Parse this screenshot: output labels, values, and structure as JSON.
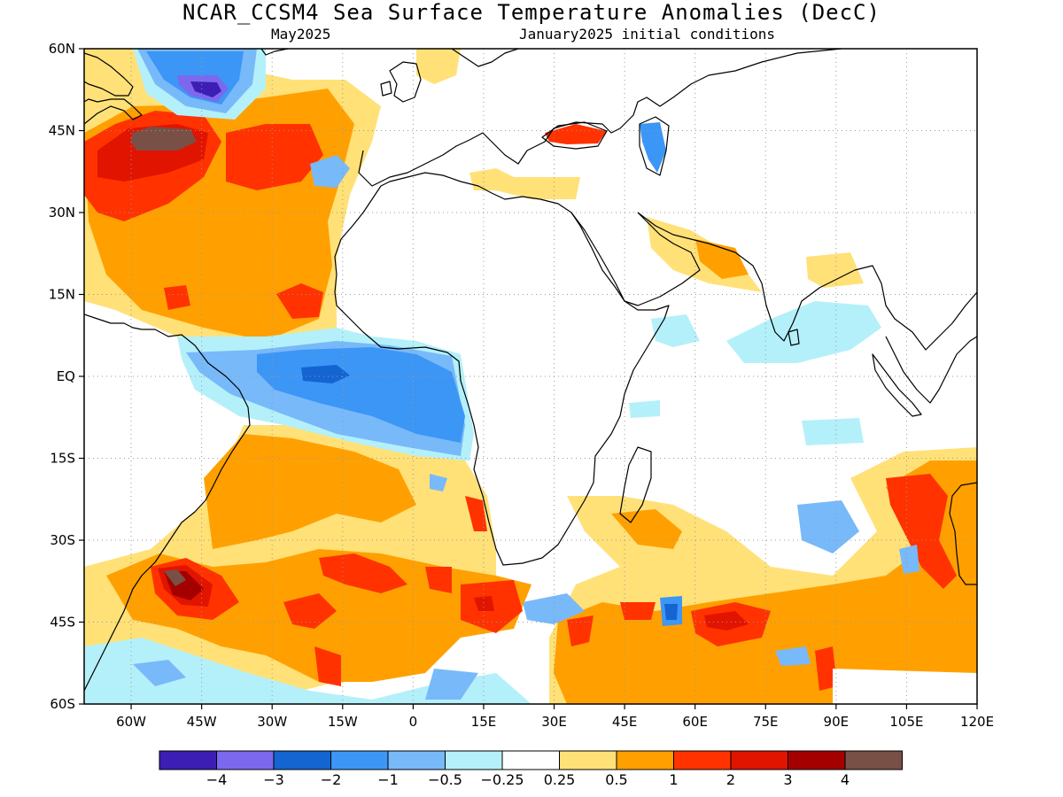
{
  "title": "NCAR_CCSM4 Sea Surface Temperature Anomalies (DecC)",
  "subtitle_left": "May2025",
  "subtitle_right": "January2025 initial conditions",
  "map": {
    "lon_range": [
      -70,
      120
    ],
    "lat_range": [
      -60,
      60
    ],
    "grid": true,
    "lat_labels": [
      "60N",
      "45N",
      "30N",
      "15N",
      "EQ",
      "15S",
      "30S",
      "45S",
      "60S"
    ],
    "lon_labels": [
      "60W",
      "45W",
      "30W",
      "15W",
      "0",
      "15E",
      "30E",
      "45E",
      "60E",
      "75E",
      "90E",
      "105E",
      "120E"
    ]
  },
  "colorbar": {
    "colors": [
      "#3c1eb4",
      "#7b68ee",
      "#1464d2",
      "#3c96f5",
      "#78b9fa",
      "#b4f0fa",
      "#ffffff",
      "#ffe178",
      "#ffa000",
      "#ff3200",
      "#e11400",
      "#a50000",
      "#785046"
    ],
    "labels": [
      "-4",
      "-3",
      "-2",
      "-1",
      "-0.5",
      "-0.25",
      "0.25",
      "0.5",
      "1",
      "2",
      "3",
      "4"
    ]
  },
  "anomaly_regions": [
    {
      "label": "Labrador Sea cold",
      "value": -4
    },
    {
      "label": "NW Atlantic warm",
      "value": 4
    },
    {
      "label": "Tropical Atlantic cold",
      "value": -2
    },
    {
      "label": "South Atlantic warm",
      "value": 1
    },
    {
      "label": "SW Atlantic warm",
      "value": 4
    },
    {
      "label": "Southern Indian Ocean warm",
      "value": 2
    },
    {
      "label": "Black Sea warm",
      "value": 2
    },
    {
      "label": "Caspian Sea cold",
      "value": -2
    }
  ]
}
